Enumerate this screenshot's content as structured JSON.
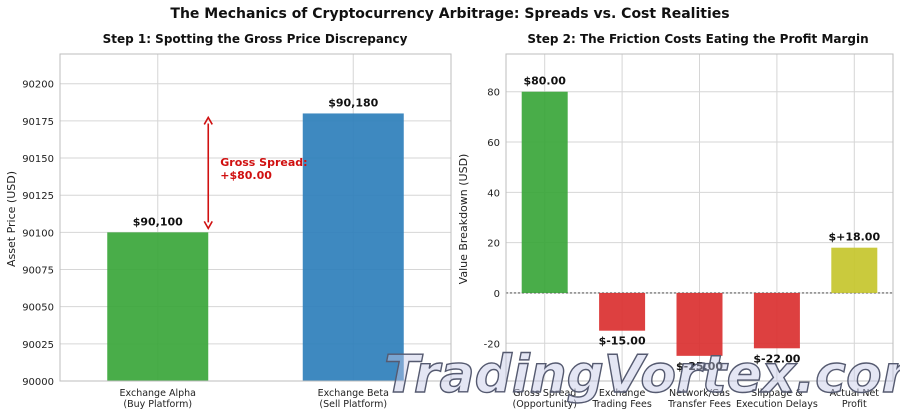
{
  "suptitle": "The Mechanics of Cryptocurrency Arbitrage: Spreads vs. Cost Realities",
  "watermark": "TradingVortex.com",
  "colors": {
    "green": "#3aa63a",
    "blue": "#2e7fbb",
    "red": "#da3030",
    "olive": "#c5c52c",
    "arrow": "#d01010"
  },
  "chart_data": [
    {
      "type": "bar",
      "title": "Step 1: Spotting the Gross Price Discrepancy",
      "xlabel": "",
      "ylabel": "Asset Price (USD)",
      "categories": [
        "Exchange Alpha\n(Buy Platform)",
        "Exchange Beta\n(Sell Platform)"
      ],
      "values": [
        90100,
        90180
      ],
      "data_labels": [
        "$90,100",
        "$90,180"
      ],
      "bar_colors": [
        "#3aa63a",
        "#2e7fbb"
      ],
      "ylim": [
        90000,
        90220
      ],
      "yticks": [
        90000,
        90025,
        90050,
        90075,
        90100,
        90125,
        90150,
        90175,
        90200
      ],
      "grid": true,
      "annotation": {
        "text": "Gross Spread:\n+$80.00",
        "from": 90100,
        "to": 90180
      }
    },
    {
      "type": "bar",
      "title": "Step 2: The Friction Costs Eating the Profit Margin",
      "xlabel": "",
      "ylabel": "Value Breakdown (USD)",
      "categories": [
        "Gross Spread\n(Opportunity)",
        "Exchange\nTrading Fees",
        "Network/Gas\nTransfer Fees",
        "Slippage &\nExecution Delays",
        "Actual Net\nProfit"
      ],
      "values": [
        80,
        -15,
        -25,
        -22,
        18
      ],
      "data_labels": [
        "$80.00",
        "$-15.00",
        "$-25.00",
        "$-22.00",
        "$+18.00"
      ],
      "bar_colors": [
        "#3aa63a",
        "#da3030",
        "#da3030",
        "#da3030",
        "#c5c52c"
      ],
      "ylim": [
        -35,
        95
      ],
      "yticks": [
        -20,
        0,
        20,
        40,
        60,
        80
      ],
      "grid": true,
      "zero_line": true
    }
  ]
}
